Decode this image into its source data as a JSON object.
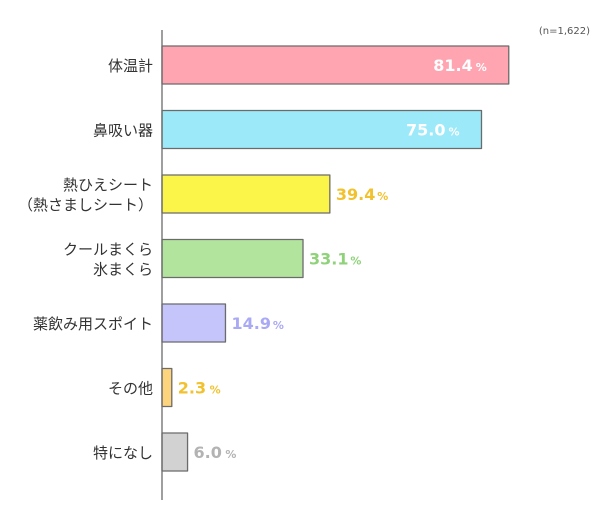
{
  "note": "(n=1,622)",
  "chart_data": {
    "type": "bar",
    "orientation": "horizontal",
    "xlim": [
      0,
      100
    ],
    "value_suffix": "%",
    "categories": [
      [
        "体温計"
      ],
      [
        "鼻吸い器"
      ],
      [
        "熱ひえシート",
        "（熱さましシート）"
      ],
      [
        "クールまくら",
        "氷まくら"
      ],
      [
        "薬飲み用スポイト"
      ],
      [
        "その他"
      ],
      [
        "特になし"
      ]
    ],
    "values": [
      81.4,
      75.0,
      39.4,
      33.1,
      14.9,
      2.3,
      6.0
    ],
    "value_labels": [
      "81.4",
      "75.0",
      "39.4",
      "33.1",
      "14.9",
      "2.3",
      "6.0"
    ],
    "colors": [
      "#ffa5b1",
      "#9be9f9",
      "#fbf54a",
      "#b3e49e",
      "#c5c5fc",
      "#fcd47e",
      "#d2d2d2"
    ],
    "label_colors": [
      "#ffffff",
      "#ffffff",
      "#f2c12e",
      "#8fd27a",
      "#a9a9f6",
      "#f2c12e",
      "#b3b3b3"
    ],
    "label_inside": [
      true,
      true,
      false,
      false,
      false,
      false,
      false
    ]
  }
}
